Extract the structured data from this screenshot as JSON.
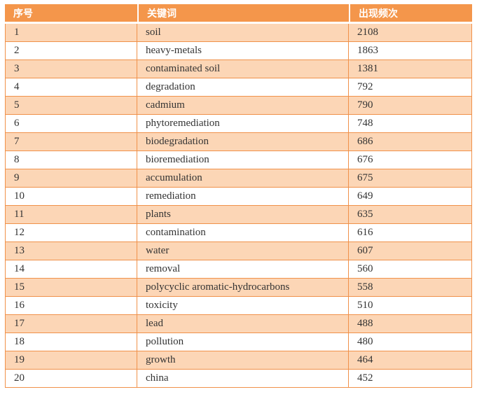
{
  "table": {
    "headers": [
      "序号",
      "关键词",
      "出现频次"
    ],
    "rows": [
      {
        "rank": "1",
        "keyword": "soil",
        "frequency": "2108"
      },
      {
        "rank": "2",
        "keyword": "heavy-metals",
        "frequency": "1863"
      },
      {
        "rank": "3",
        "keyword": "contaminated soil",
        "frequency": "1381"
      },
      {
        "rank": "4",
        "keyword": "degradation",
        "frequency": "792"
      },
      {
        "rank": "5",
        "keyword": "cadmium",
        "frequency": "790"
      },
      {
        "rank": "6",
        "keyword": "phytoremediation",
        "frequency": "748"
      },
      {
        "rank": "7",
        "keyword": "biodegradation",
        "frequency": "686"
      },
      {
        "rank": "8",
        "keyword": "bioremediation",
        "frequency": "676"
      },
      {
        "rank": "9",
        "keyword": "accumulation",
        "frequency": "675"
      },
      {
        "rank": "10",
        "keyword": "remediation",
        "frequency": "649"
      },
      {
        "rank": "11",
        "keyword": "plants",
        "frequency": "635"
      },
      {
        "rank": "12",
        "keyword": "contamination",
        "frequency": "616"
      },
      {
        "rank": "13",
        "keyword": "water",
        "frequency": "607"
      },
      {
        "rank": "14",
        "keyword": "removal",
        "frequency": "560"
      },
      {
        "rank": "15",
        "keyword": "polycyclic aromatic-hydrocarbons",
        "frequency": "558"
      },
      {
        "rank": "16",
        "keyword": "toxicity",
        "frequency": "510"
      },
      {
        "rank": "17",
        "keyword": "lead",
        "frequency": "488"
      },
      {
        "rank": "18",
        "keyword": "pollution",
        "frequency": "480"
      },
      {
        "rank": "19",
        "keyword": "growth",
        "frequency": "464"
      },
      {
        "rank": "20",
        "keyword": "china",
        "frequency": "452"
      }
    ],
    "colors": {
      "header_background": "#F4964B",
      "banded_row_background": "#FCD6B6",
      "cell_border": "#F0914A",
      "header_text": "#FFFFFF",
      "body_text": "#333333"
    }
  }
}
